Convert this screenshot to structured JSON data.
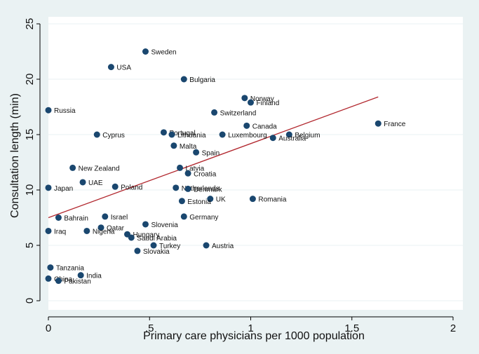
{
  "chart_data": {
    "type": "scatter",
    "title": "",
    "xlabel": "Primary care physicians per 1000 population",
    "ylabel": "Consultation length (min)",
    "xlim": [
      0,
      2
    ],
    "ylim": [
      0,
      25
    ],
    "xticks": [
      {
        "value": 0,
        "label": "0"
      },
      {
        "value": 0.5,
        "label": ".5"
      },
      {
        "value": 1,
        "label": "1"
      },
      {
        "value": 1.5,
        "label": "1.5"
      },
      {
        "value": 2,
        "label": "2"
      }
    ],
    "yticks": [
      {
        "value": 0,
        "label": "0"
      },
      {
        "value": 5,
        "label": "5"
      },
      {
        "value": 10,
        "label": "10"
      },
      {
        "value": 15,
        "label": "15"
      },
      {
        "value": 20,
        "label": "20"
      },
      {
        "value": 25,
        "label": "25"
      }
    ],
    "grid": "horizontal",
    "legend": "none",
    "colors": {
      "points": "#1a476f",
      "fit_line": "#b2282f",
      "plot_bg": "#ffffff",
      "outer_bg": "#eaf2f3"
    },
    "points": [
      {
        "label": "Sweden",
        "x": 0.48,
        "y": 22.5
      },
      {
        "label": "USA",
        "x": 0.31,
        "y": 21.1
      },
      {
        "label": "Bulgaria",
        "x": 0.67,
        "y": 20.0
      },
      {
        "label": "Russia",
        "x": 0.0,
        "y": 17.2
      },
      {
        "label": "Norway",
        "x": 0.97,
        "y": 18.3
      },
      {
        "label": "Finland",
        "x": 1.0,
        "y": 17.9
      },
      {
        "label": "Switzerland",
        "x": 0.82,
        "y": 17.0
      },
      {
        "label": "Canada",
        "x": 0.98,
        "y": 15.8
      },
      {
        "label": "France",
        "x": 1.63,
        "y": 16.0
      },
      {
        "label": "Cyprus",
        "x": 0.24,
        "y": 15.0
      },
      {
        "label": "Portugal",
        "x": 0.57,
        "y": 15.2
      },
      {
        "label": "Lithuania",
        "x": 0.61,
        "y": 15.0
      },
      {
        "label": "Luxembourg",
        "x": 0.86,
        "y": 15.0
      },
      {
        "label": "Belgium",
        "x": 1.19,
        "y": 15.0
      },
      {
        "label": "Australia",
        "x": 1.11,
        "y": 14.7
      },
      {
        "label": "Malta",
        "x": 0.62,
        "y": 14.0
      },
      {
        "label": "Spain",
        "x": 0.73,
        "y": 13.4
      },
      {
        "label": "New Zealand",
        "x": 0.12,
        "y": 12.0
      },
      {
        "label": "Latvia",
        "x": 0.65,
        "y": 12.0
      },
      {
        "label": "Croatia",
        "x": 0.69,
        "y": 11.5
      },
      {
        "label": "Japan",
        "x": 0.0,
        "y": 10.2
      },
      {
        "label": "UAE",
        "x": 0.17,
        "y": 10.7
      },
      {
        "label": "Poland",
        "x": 0.33,
        "y": 10.3
      },
      {
        "label": "Netherlands",
        "x": 0.63,
        "y": 10.2
      },
      {
        "label": "Denmark",
        "x": 0.69,
        "y": 10.1
      },
      {
        "label": "UK",
        "x": 0.8,
        "y": 9.2
      },
      {
        "label": "Estonia",
        "x": 0.66,
        "y": 9.0
      },
      {
        "label": "Romania",
        "x": 1.01,
        "y": 9.2
      },
      {
        "label": "Bahrain",
        "x": 0.05,
        "y": 7.5
      },
      {
        "label": "Israel",
        "x": 0.28,
        "y": 7.6
      },
      {
        "label": "Germany",
        "x": 0.67,
        "y": 7.6
      },
      {
        "label": "Slovenia",
        "x": 0.48,
        "y": 6.9
      },
      {
        "label": "Iraq",
        "x": 0.0,
        "y": 6.3
      },
      {
        "label": "Qatar",
        "x": 0.26,
        "y": 6.6
      },
      {
        "label": "Nigeria",
        "x": 0.19,
        "y": 6.3
      },
      {
        "label": "Hungary",
        "x": 0.39,
        "y": 6.0
      },
      {
        "label": "Saudi Arabia",
        "x": 0.41,
        "y": 5.7
      },
      {
        "label": "Turkey",
        "x": 0.52,
        "y": 5.0
      },
      {
        "label": "Austria",
        "x": 0.78,
        "y": 5.0
      },
      {
        "label": "Slovakia",
        "x": 0.44,
        "y": 4.5
      },
      {
        "label": "Tanzania",
        "x": 0.01,
        "y": 3.0
      },
      {
        "label": "India",
        "x": 0.16,
        "y": 2.3
      },
      {
        "label": "China",
        "x": 0.0,
        "y": 2.0
      },
      {
        "label": "Pakistan",
        "x": 0.05,
        "y": 1.8
      }
    ],
    "fit_line": {
      "x": [
        0,
        1.63
      ],
      "y": [
        7.5,
        18.4
      ]
    }
  }
}
